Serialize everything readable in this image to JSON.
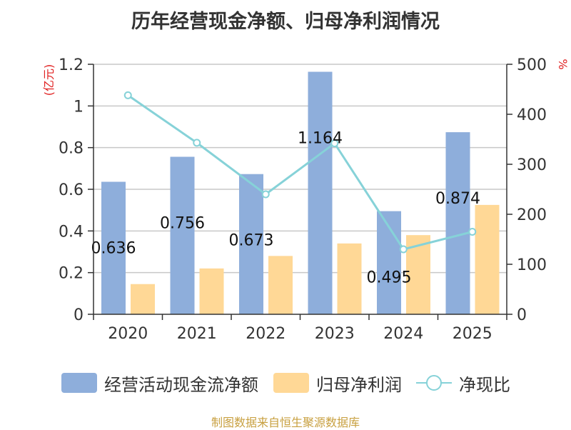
{
  "title": "历年经营现金净额、归母净利润情况",
  "left_axis_unit": "(亿元)",
  "right_axis_unit": "%",
  "source": "制图数据来自恒生聚源数据库",
  "chart_data": {
    "type": "bar",
    "title": "历年经营现金净额、归母净利润情况",
    "categories": [
      "2020",
      "2021",
      "2022",
      "2023",
      "2024",
      "2025"
    ],
    "series": [
      {
        "name": "经营活动现金流净额",
        "type": "bar",
        "axis": "left",
        "color": "#8eaedb",
        "values": [
          0.636,
          0.756,
          0.673,
          1.164,
          0.495,
          0.874
        ],
        "labels": [
          "0.636",
          "0.756",
          "0.673",
          "1.164",
          "0.495",
          "0.874"
        ]
      },
      {
        "name": "归母净利润",
        "type": "bar",
        "axis": "left",
        "color": "#ffd896",
        "values": [
          0.145,
          0.22,
          0.28,
          0.34,
          0.38,
          0.525
        ]
      },
      {
        "name": "净现比",
        "type": "line",
        "axis": "right",
        "color": "#86d2d8",
        "values": [
          438,
          343,
          240,
          342,
          130,
          165
        ]
      }
    ],
    "y_left": {
      "label": "(亿元)",
      "ylim": [
        0,
        1.2
      ],
      "ticks": [
        0,
        0.2,
        0.4,
        0.6,
        0.8,
        1,
        1.2
      ],
      "tick_labels": [
        "0",
        "0.2",
        "0.4",
        "0.6",
        "0.8",
        "1",
        "1.2"
      ]
    },
    "y_right": {
      "label": "%",
      "ylim": [
        0,
        500
      ],
      "ticks": [
        0,
        100,
        200,
        300,
        400,
        500
      ],
      "tick_labels": [
        "0",
        "100",
        "200",
        "300",
        "400",
        "500"
      ]
    },
    "grid": true,
    "legend": "bottom"
  }
}
